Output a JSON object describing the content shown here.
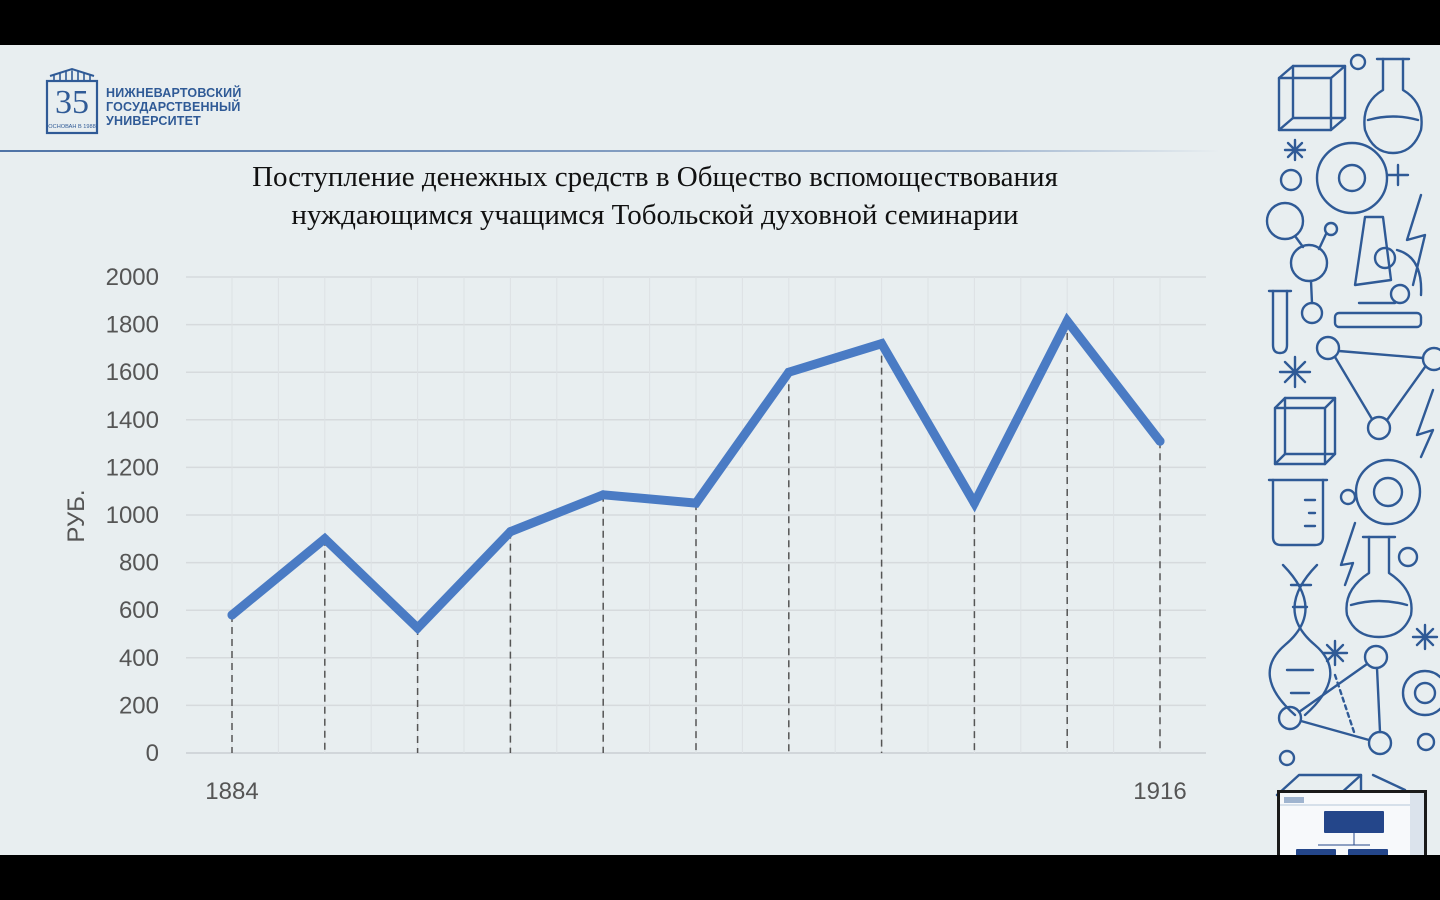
{
  "logo": {
    "badge_number": "35",
    "badge_caption": "ОСНОВАН В 1988",
    "lines": [
      "НИЖНЕВАРТОВСКИЙ",
      "ГОСУДАРСТВЕННЫЙ",
      "УНИВЕРСИТЕТ"
    ]
  },
  "title_lines": [
    "Поступление денежных средств в Общество вспомоществования",
    "нуждающимся учащимся Тобольской духовной семинарии"
  ],
  "colors": {
    "line": "#4a7bc4",
    "logo": "#2f5a96"
  },
  "chart_data": {
    "type": "line",
    "title": "Поступление денежных средств в Общество вспомоществования нуждающимся учащимся Тобольской духовной семинарии",
    "xlabel": "",
    "ylabel": "РУБ.",
    "x_tick_labels": [
      "1884",
      "1916"
    ],
    "ylim": [
      0,
      2000
    ],
    "yticks": [
      0,
      200,
      400,
      600,
      800,
      1000,
      1200,
      1400,
      1600,
      1800,
      2000
    ],
    "grid": true,
    "drop_lines": true,
    "points": [
      {
        "label": "1884",
        "value": 580
      },
      {
        "label": "",
        "value": 900
      },
      {
        "label": "",
        "value": 525
      },
      {
        "label": "",
        "value": 930
      },
      {
        "label": "",
        "value": 1085
      },
      {
        "label": "",
        "value": 1050
      },
      {
        "label": "",
        "value": 1600
      },
      {
        "label": "",
        "value": 1720
      },
      {
        "label": "",
        "value": 1050
      },
      {
        "label": "",
        "value": 1815
      },
      {
        "label": "1916",
        "value": 1310
      }
    ]
  }
}
